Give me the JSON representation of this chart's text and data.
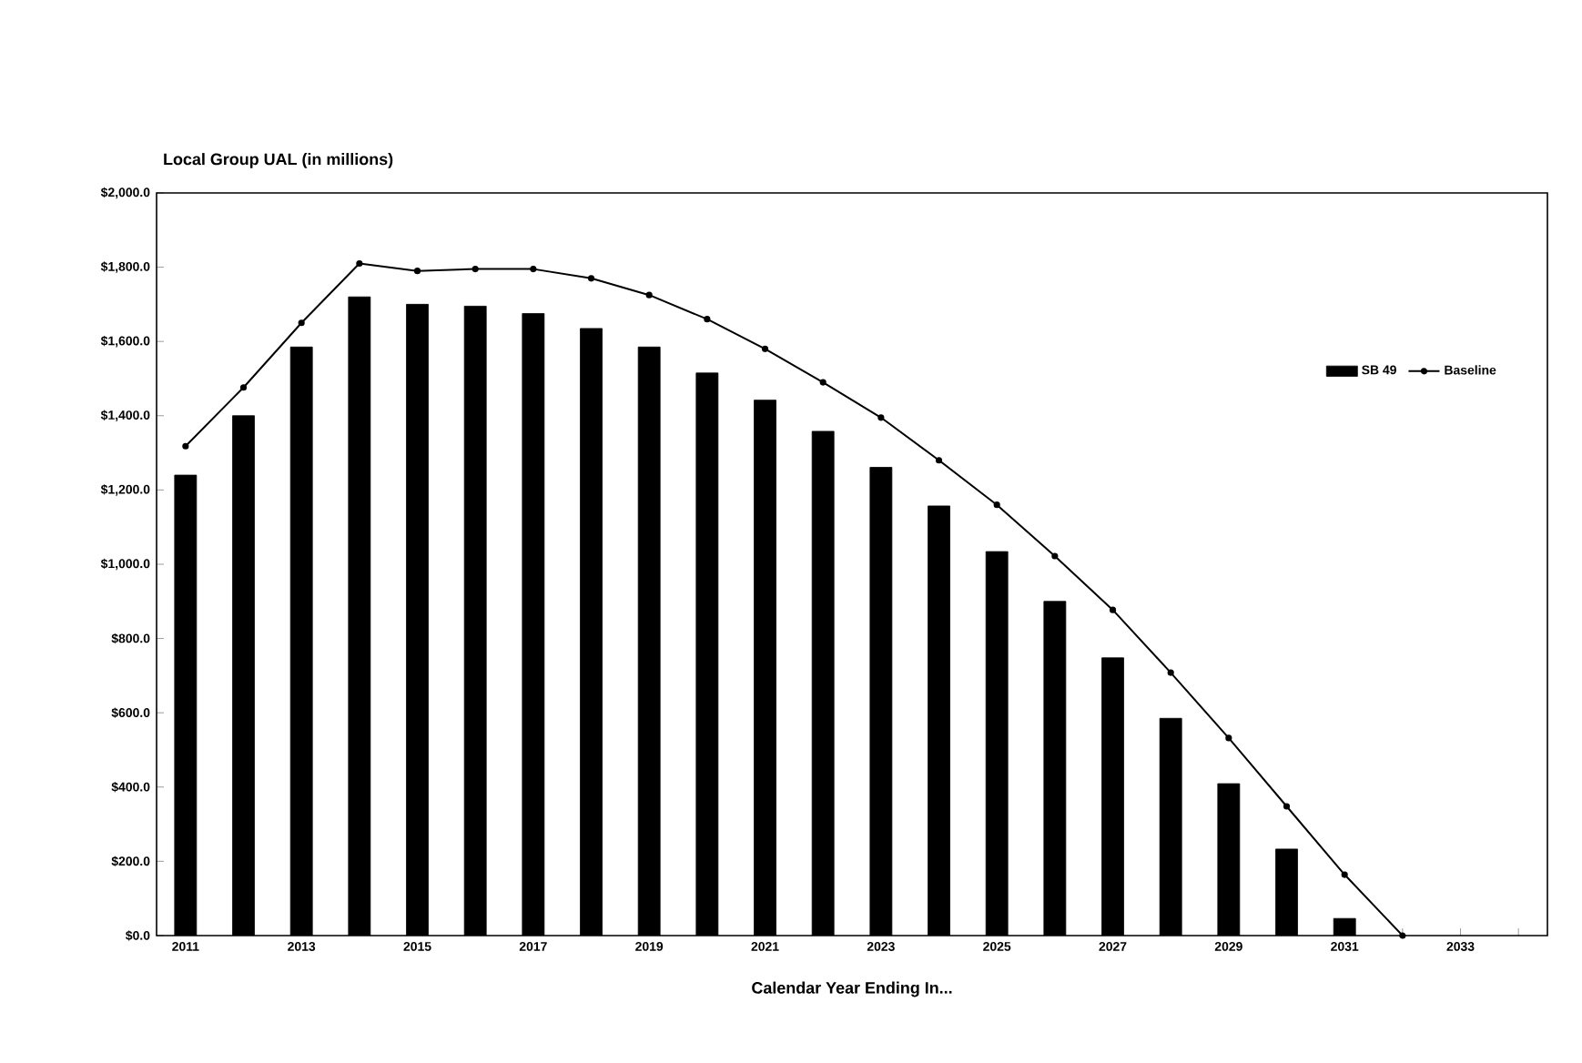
{
  "chart_data": {
    "type": "bar",
    "title": "Local Group UAL (in millions)",
    "xlabel": "Calendar Year Ending In...",
    "categories": [
      "2011",
      null,
      "2013",
      null,
      "2015",
      null,
      "2017",
      null,
      "2019",
      null,
      "2021",
      null,
      "2023",
      null,
      "2025",
      null,
      "2027",
      null,
      "2029",
      null,
      "2031",
      null,
      "2033",
      null
    ],
    "series": [
      {
        "name": "SB 49",
        "color": "#000000",
        "values": [
          1240,
          1400,
          1585,
          1720,
          1700,
          1695,
          1675,
          1635,
          1585,
          1515,
          1442,
          1358,
          1261,
          1157,
          1034,
          900,
          748,
          585,
          409,
          233,
          46,
          null,
          null,
          null
        ]
      },
      {
        "name": "Baseline",
        "type": "line",
        "color": "#000000",
        "values": [
          1318,
          1476,
          1650,
          1810,
          1790,
          1795,
          1795,
          1770,
          1725,
          1660,
          1580,
          1490,
          1395,
          1280,
          1160,
          1022,
          877,
          708,
          532,
          348,
          164,
          0,
          null,
          null
        ]
      }
    ],
    "ylim": [
      0,
      2000
    ],
    "yticks": [
      {
        "value": 0,
        "label": "$0.0"
      },
      {
        "value": 200,
        "label": "$200.0"
      },
      {
        "value": 400,
        "label": "$400.0"
      },
      {
        "value": 600,
        "label": "$600.0"
      },
      {
        "value": 800,
        "label": "$800.0"
      },
      {
        "value": 1000,
        "label": "$1,000.0"
      },
      {
        "value": 1200,
        "label": "$1,200.0"
      },
      {
        "value": 1400,
        "label": "$1,400.0"
      },
      {
        "value": 1600,
        "label": "$1,600.0"
      },
      {
        "value": 1800,
        "label": "$1,800.0"
      },
      {
        "value": 2000,
        "label": "$2,000.0"
      }
    ],
    "legend": "right",
    "grid": false,
    "marker": "circle",
    "line_style": "solid"
  }
}
